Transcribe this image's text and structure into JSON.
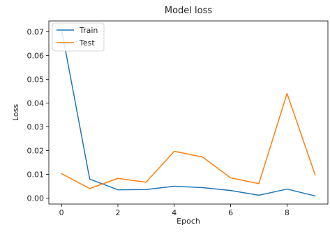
{
  "chart_data": {
    "type": "line",
    "title": "Model loss",
    "xlabel": "Epoch",
    "ylabel": "Loss",
    "x": [
      0,
      1,
      2,
      3,
      4,
      5,
      6,
      7,
      8,
      9
    ],
    "xlim": [
      -0.45,
      9.45
    ],
    "ylim": [
      -0.0025,
      0.0745
    ],
    "xticks": [
      0,
      2,
      4,
      6,
      8
    ],
    "yticks": [
      0.0,
      0.01,
      0.02,
      0.03,
      0.04,
      0.05,
      0.06,
      0.07
    ],
    "ytick_labels": [
      "0.00",
      "0.01",
      "0.02",
      "0.03",
      "0.04",
      "0.05",
      "0.06",
      "0.07"
    ],
    "grid": false,
    "legend_position": "top-left",
    "series": [
      {
        "name": "Train",
        "color": "#1f77b4",
        "values": [
          0.071,
          0.008,
          0.0035,
          0.0036,
          0.005,
          0.0044,
          0.0032,
          0.0012,
          0.0038,
          0.0009
        ]
      },
      {
        "name": "Test",
        "color": "#ff7f0e",
        "values": [
          0.0103,
          0.004,
          0.0083,
          0.0067,
          0.0197,
          0.0173,
          0.0085,
          0.0061,
          0.044,
          0.0097
        ]
      }
    ]
  }
}
